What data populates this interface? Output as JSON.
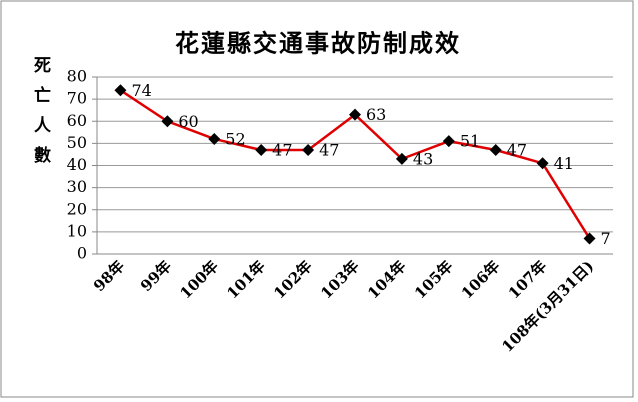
{
  "chart_data": {
    "type": "line",
    "title": "花蓮縣交通事故防制成效",
    "y_label": "死亡人數",
    "categories": [
      "98年",
      "99年",
      "100年",
      "101年",
      "102年",
      "103年",
      "104年",
      "105年",
      "106年",
      "107年",
      "108年(3月31日)"
    ],
    "series": [
      {
        "name": "死亡人數",
        "color": "#e00000",
        "marker_color": "#000000",
        "values": [
          74,
          60,
          52,
          47,
          47,
          63,
          43,
          51,
          47,
          41,
          7
        ]
      }
    ],
    "ylim": [
      0,
      80
    ],
    "yticks": [
      0,
      10,
      20,
      30,
      40,
      50,
      60,
      70,
      80
    ],
    "grid": true,
    "legend": false
  }
}
